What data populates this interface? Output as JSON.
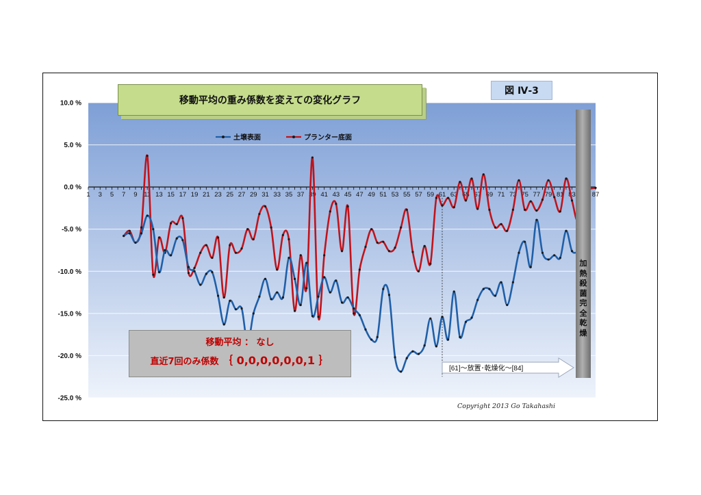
{
  "title": "移動平均の重み係数を変えての変化グラフ",
  "figure_label": "図 Ⅳ-3",
  "note": {
    "line1": "移動平均 ： なし",
    "line2_prefix": "直近7回のみ係数",
    "line2_coeffs": "｛ 0,0,0,0,0,0,1 ｝"
  },
  "drying_label": "[61]～放置･乾燥化～[84]",
  "side_label": [
    "加",
    "熱",
    "殺",
    "菌",
    "完",
    "全",
    "乾",
    "燥"
  ],
  "copyright": "Copyright 2013 Go Takahashi",
  "colors": {
    "soil_surface": "#1f5fa8",
    "planter_bottom": "#c0141c",
    "plot_bg_top": "#7e9fd6",
    "plot_bg_bottom": "#eef3fb",
    "title_bg": "#c4dc8c",
    "label_bg": "#c7daf2"
  },
  "chart_data": {
    "type": "line",
    "x_tick_labels": [
      "1",
      "3",
      "5",
      "7",
      "9",
      "11",
      "13",
      "15",
      "17",
      "19",
      "21",
      "23",
      "25",
      "27",
      "29",
      "31",
      "33",
      "35",
      "37",
      "39",
      "41",
      "43",
      "45",
      "47",
      "49",
      "51",
      "53",
      "55",
      "57",
      "59",
      "61",
      "63",
      "65",
      "67",
      "69",
      "71",
      "73",
      "75",
      "77",
      "79",
      "81",
      "83",
      "85",
      "87"
    ],
    "xlim": [
      1,
      87
    ],
    "ylim": [
      -25,
      10
    ],
    "y_ticks": [
      10,
      5,
      0,
      -5,
      -10,
      -15,
      -20,
      -25
    ],
    "y_tick_labels": [
      "10.0 %",
      "5.0 %",
      "0.0 %",
      "-5.0 %",
      "-10.0 %",
      "-15.0 %",
      "-20.0 %",
      "-25.0 %"
    ],
    "grid": true,
    "legend_position": "top",
    "series": [
      {
        "name": "土壌表面",
        "color": "#1f5fa8",
        "x": [
          7,
          8,
          9,
          10,
          11,
          12,
          13,
          14,
          15,
          16,
          17,
          18,
          19,
          20,
          21,
          22,
          23,
          24,
          25,
          26,
          27,
          28,
          29,
          30,
          31,
          32,
          33,
          34,
          35,
          36,
          37,
          38,
          39,
          40,
          41,
          42,
          43,
          44,
          45,
          46,
          47,
          48,
          49,
          50,
          51,
          52,
          53,
          54,
          55,
          56,
          57,
          58,
          59,
          60,
          61,
          62,
          63,
          64,
          65,
          66,
          67,
          68,
          69,
          70,
          71,
          72,
          73,
          74,
          75,
          76,
          77,
          78,
          79,
          80,
          81,
          82,
          83,
          84
        ],
        "values": [
          -5.8,
          -5.5,
          -6.6,
          -5.5,
          -3.4,
          -5.0,
          -10.1,
          -7.5,
          -8.1,
          -6.1,
          -6.3,
          -9.5,
          -10.0,
          -11.6,
          -10.3,
          -10.1,
          -12.9,
          -16.3,
          -13.5,
          -14.5,
          -14.4,
          -18.5,
          -15.0,
          -13.0,
          -10.9,
          -13.3,
          -12.5,
          -13.1,
          -8.4,
          -10.9,
          -14.0,
          -9.0,
          -15.3,
          -13.0,
          -10.7,
          -12.5,
          -11.1,
          -13.7,
          -13.1,
          -14.4,
          -15.2,
          -16.9,
          -18.1,
          -17.8,
          -12.1,
          -12.8,
          -20.2,
          -21.9,
          -20.3,
          -19.5,
          -19.8,
          -18.8,
          -15.6,
          -18.9,
          -15.4,
          -18.1,
          -12.4,
          -17.8,
          -16.0,
          -15.5,
          -13.4,
          -12.1,
          -12.1,
          -12.9,
          -11.3,
          -14.0,
          -11.3,
          -7.8,
          -6.5,
          -9.5,
          -3.9,
          -7.8,
          -8.6,
          -8.1,
          -8.4,
          -5.2,
          -7.6,
          -7.7
        ]
      },
      {
        "name": "プランター底面",
        "color": "#c0141c",
        "x": [
          7,
          8,
          9,
          10,
          11,
          12,
          13,
          14,
          15,
          16,
          17,
          18,
          19,
          20,
          21,
          22,
          23,
          24,
          25,
          26,
          27,
          28,
          29,
          30,
          31,
          32,
          33,
          34,
          35,
          36,
          37,
          38,
          39,
          40,
          41,
          42,
          43,
          44,
          45,
          46,
          47,
          48,
          49,
          50,
          51,
          52,
          53,
          54,
          55,
          56,
          57,
          58,
          59,
          60,
          61,
          62,
          63,
          64,
          65,
          66,
          67,
          68,
          69,
          70,
          71,
          72,
          73,
          74,
          75,
          76,
          77,
          78,
          79,
          80,
          81,
          82,
          83,
          84,
          85,
          86,
          87
        ],
        "values": [
          -5.8,
          -5.2,
          -6.6,
          -4.8,
          3.7,
          -10.4,
          -6.0,
          -7.8,
          -4.3,
          -4.4,
          -3.7,
          -10.2,
          -9.6,
          -7.8,
          -6.9,
          -8.4,
          -6.0,
          -13.1,
          -6.9,
          -7.8,
          -7.3,
          -5.0,
          -6.2,
          -3.2,
          -2.3,
          -4.8,
          -9.8,
          -5.7,
          -6.2,
          -14.7,
          -8.1,
          -12.0,
          3.5,
          -15.4,
          -8.1,
          -2.9,
          -2.0,
          -7.6,
          -2.3,
          -15.0,
          -9.8,
          -7.1,
          -5.0,
          -6.6,
          -6.5,
          -7.6,
          -7.2,
          -4.8,
          -2.7,
          -7.7,
          -10.0,
          -7.0,
          -9.1,
          -1.3,
          -2.2,
          -1.3,
          -2.4,
          0.6,
          -1.6,
          1.0,
          -2.6,
          1.5,
          -2.7,
          -4.8,
          -4.4,
          -5.2,
          -2.7,
          0.8,
          -2.7,
          -1.7,
          -2.8,
          -1.5,
          0.8,
          -1.2,
          -2.9,
          1.0,
          -1.6,
          -4.0,
          -0.2,
          -0.2,
          -0.1
        ]
      }
    ]
  }
}
